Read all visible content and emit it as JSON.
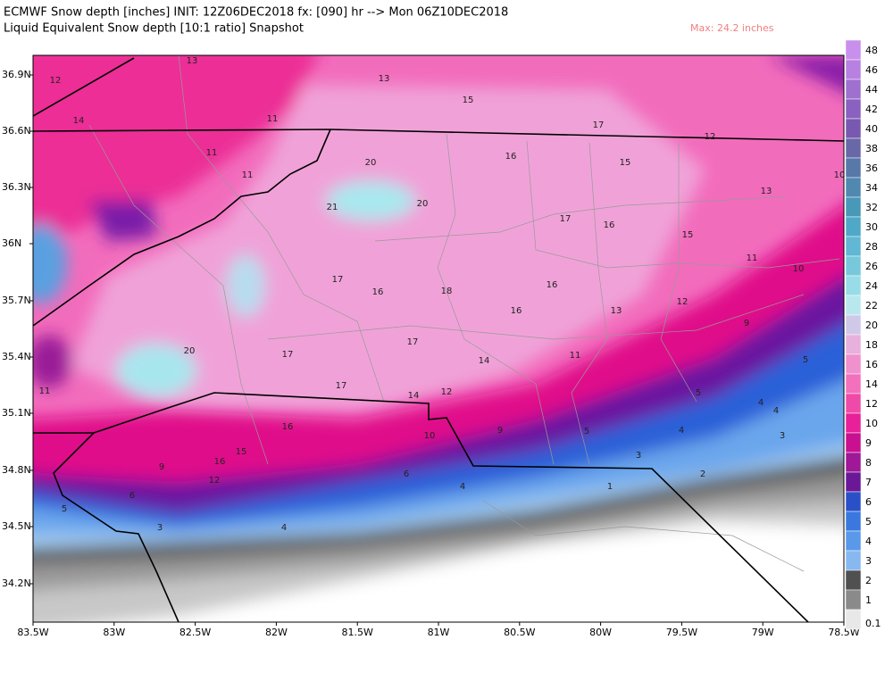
{
  "header": {
    "title": "ECMWF Snow depth [inches] INIT: 12Z06DEC2018 fx: [090] hr --> Mon 06Z10DEC2018",
    "subtitle": "Liquid Equivalent Snow depth [10:1 ratio] Snapshot",
    "max": "Max: 24.2 inches"
  },
  "lat_labels": [
    "36.9N",
    "36.6N",
    "36.3N",
    "36N",
    "35.7N",
    "35.4N",
    "35.1N",
    "34.8N",
    "34.5N",
    "34.2N"
  ],
  "lon_labels": [
    "83.5W",
    "83W",
    "82.5W",
    "82W",
    "81.5W",
    "81W",
    "80.5W",
    "80W",
    "79.5W",
    "79W",
    "78.5W"
  ],
  "colorbar": [
    {
      "label": "48",
      "color": "#c890ec"
    },
    {
      "label": "46",
      "color": "#b880e0"
    },
    {
      "label": "44",
      "color": "#a070d0"
    },
    {
      "label": "42",
      "color": "#8a60c0"
    },
    {
      "label": "40",
      "color": "#7858b0"
    },
    {
      "label": "38",
      "color": "#6868a8"
    },
    {
      "label": "36",
      "color": "#5878a8"
    },
    {
      "label": "34",
      "color": "#5088b0"
    },
    {
      "label": "32",
      "color": "#4898b8"
    },
    {
      "label": "30",
      "color": "#50a8c8"
    },
    {
      "label": "28",
      "color": "#60b8d4"
    },
    {
      "label": "26",
      "color": "#78c8dc"
    },
    {
      "label": "24",
      "color": "#98dce8"
    },
    {
      "label": "22",
      "color": "#b8e8ee"
    },
    {
      "label": "20",
      "color": "#d0c8e8"
    },
    {
      "label": "18",
      "color": "#e8b0dc"
    },
    {
      "label": "16",
      "color": "#f090cc"
    },
    {
      "label": "14",
      "color": "#f270bc"
    },
    {
      "label": "12",
      "color": "#f04aa8"
    },
    {
      "label": "10",
      "color": "#e8209a"
    },
    {
      "label": "9",
      "color": "#c81090"
    },
    {
      "label": "8",
      "color": "#9e1898"
    },
    {
      "label": "7",
      "color": "#6a1898"
    },
    {
      "label": "6",
      "color": "#2a50c8"
    },
    {
      "label": "5",
      "color": "#3a78e0"
    },
    {
      "label": "4",
      "color": "#5a98ea"
    },
    {
      "label": "3",
      "color": "#88b8f0"
    },
    {
      "label": "2",
      "color": "#505050"
    },
    {
      "label": "1",
      "color": "#8a8a8a"
    },
    {
      "label": "0.1",
      "color": "#e8e8e8"
    }
  ],
  "contour_labels": [
    "13",
    "12",
    "13",
    "14",
    "11",
    "15",
    "17",
    "12",
    "11",
    "16",
    "15",
    "20",
    "11",
    "10",
    "13",
    "21",
    "20",
    "17",
    "16",
    "15",
    "11",
    "10",
    "17",
    "16",
    "18",
    "16",
    "12",
    "16",
    "13",
    "9",
    "17",
    "20",
    "17",
    "14",
    "11",
    "5",
    "11",
    "17",
    "14",
    "12",
    "5",
    "4",
    "4",
    "16",
    "9",
    "10",
    "5",
    "4",
    "3",
    "15",
    "3",
    "16",
    "9",
    "6",
    "12",
    "2",
    "1",
    "4",
    "6",
    "5",
    "3",
    "4"
  ]
}
